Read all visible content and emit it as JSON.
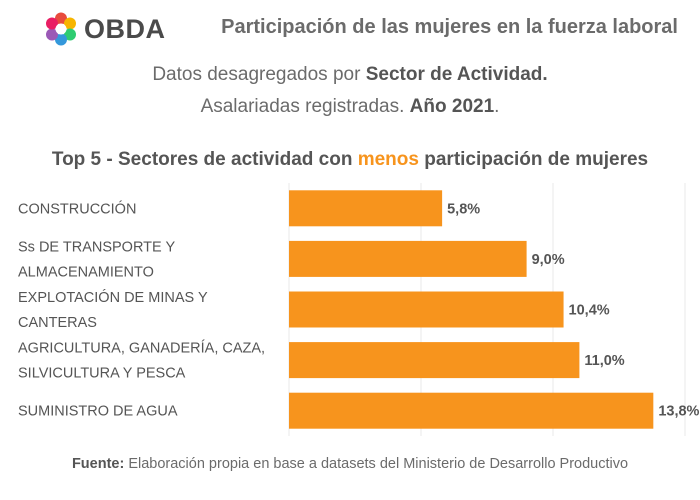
{
  "brand": {
    "logo_text": "OBDA",
    "logo_colors": [
      "#e84c3d",
      "#f7b500",
      "#2ecc71",
      "#3498db",
      "#9b59b6",
      "#e91e63"
    ]
  },
  "header": {
    "title": "Participación de las mujeres en la fuerza laboral"
  },
  "subtitle": {
    "line1_prefix": "Datos desagregados por ",
    "line1_bold": "Sector de Actividad.",
    "line2_prefix": "Asalariadas registradas. ",
    "line2_bold": "Año 2021",
    "line2_suffix": "."
  },
  "footer": {
    "label": "Fuente:",
    "text": " Elaboración propia en base a datasets del Ministerio de Desarrollo Productivo"
  },
  "chart_data": {
    "type": "bar",
    "orientation": "horizontal",
    "title_parts": {
      "prefix": "Top 5 - Sectores de actividad con ",
      "highlight": "menos",
      "suffix": " participación de mujeres"
    },
    "categories": [
      [
        "CONSTRUCCIÓN"
      ],
      [
        "Ss DE TRANSPORTE Y",
        "ALMACENAMIENTO"
      ],
      [
        "EXPLOTACIÓN DE MINAS Y",
        "CANTERAS"
      ],
      [
        "AGRICULTURA, GANADERÍA, CAZA,",
        "SILVICULTURA Y PESCA"
      ],
      [
        "SUMINISTRO DE AGUA"
      ]
    ],
    "values": [
      5.8,
      9.0,
      10.4,
      11.0,
      13.8
    ],
    "value_labels": [
      "5,8%",
      "9,0%",
      "10,4%",
      "11,0%",
      "13,8%"
    ],
    "xlim": [
      0,
      15
    ],
    "grid": true,
    "bar_color": "#f7941d",
    "grid_color": "#e8e8e8",
    "xlabel": "",
    "ylabel": ""
  }
}
